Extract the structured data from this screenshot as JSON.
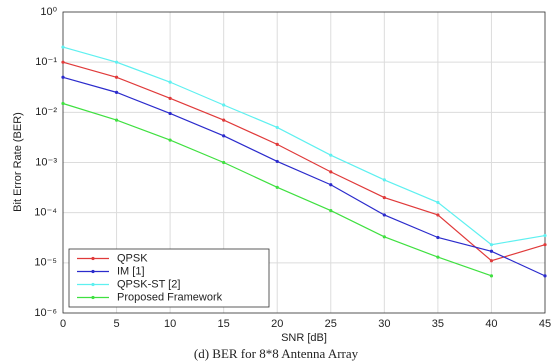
{
  "chart_data": {
    "type": "line",
    "ylabel": "Bit Error Rate (BER)",
    "xlabel": "SNR [dB]",
    "caption": "(d) BER for 8*8 Antenna Array",
    "x": [
      0,
      5,
      10,
      15,
      20,
      25,
      30,
      35,
      40,
      45
    ],
    "xlim": [
      0,
      45
    ],
    "xticks": [
      0,
      5,
      10,
      15,
      20,
      25,
      30,
      35,
      40,
      45
    ],
    "ylim": [
      1e-06,
      1
    ],
    "yscale": "log",
    "yticks": [
      {
        "value": 1,
        "label": "10⁰"
      },
      {
        "value": 0.1,
        "label": "10⁻¹"
      },
      {
        "value": 0.01,
        "label": "10⁻²"
      },
      {
        "value": 0.001,
        "label": "10⁻³"
      },
      {
        "value": 0.0001,
        "label": "10⁻⁴"
      },
      {
        "value": 1e-05,
        "label": "10⁻⁵"
      },
      {
        "value": 1e-06,
        "label": "10⁻⁶"
      }
    ],
    "grid": true,
    "legend": "lower left",
    "series": [
      {
        "name": "QPSK",
        "color": "#e03a3a",
        "values": [
          0.1,
          0.05,
          0.019,
          0.007,
          0.0023,
          0.00065,
          0.0002,
          9e-05,
          1.1e-05,
          2.3e-05
        ]
      },
      {
        "name": "IM [1]",
        "color": "#2b2bcc",
        "values": [
          0.05,
          0.025,
          0.0095,
          0.0034,
          0.00105,
          0.00036,
          9e-05,
          3.2e-05,
          1.7e-05,
          5.5e-06
        ]
      },
      {
        "name": "QPSK-ST [2]",
        "color": "#5ef0f0",
        "values": [
          0.2,
          0.1,
          0.04,
          0.014,
          0.005,
          0.0014,
          0.00045,
          0.00016,
          2.3e-05,
          3.5e-05
        ]
      },
      {
        "name": "Proposed Framework",
        "color": "#3fe040",
        "values": [
          0.015,
          0.007,
          0.0028,
          0.001,
          0.00032,
          0.00011,
          3.3e-05,
          1.3e-05,
          5.5e-06,
          null
        ]
      }
    ]
  }
}
